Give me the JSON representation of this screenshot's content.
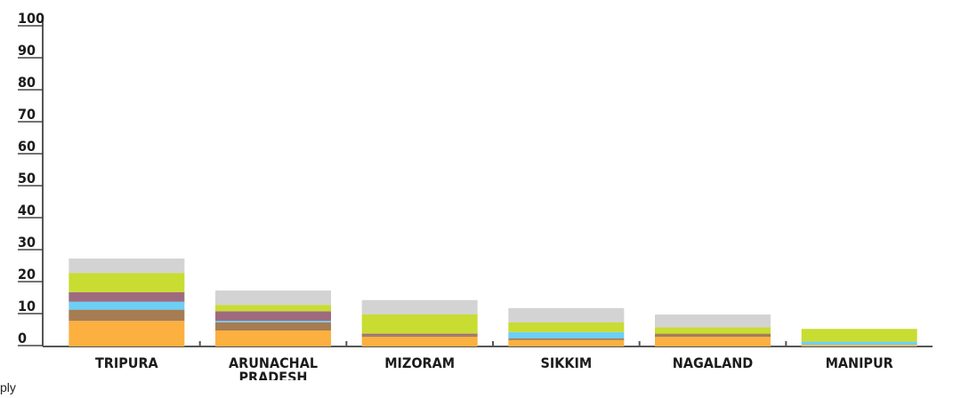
{
  "chart_data": {
    "type": "bar",
    "stacked": true,
    "title": "",
    "xlabel": "",
    "ylabel": "",
    "ylim": [
      0,
      100
    ],
    "yticks": [
      0,
      10,
      20,
      30,
      40,
      50,
      60,
      70,
      80,
      90,
      100
    ],
    "grid": false,
    "legend": "none",
    "categories": [
      "TRIPURA",
      "ARUNACHAL PRADESH",
      "MIZORAM",
      "SIKKIM",
      "NAGALAND",
      "MANIPUR"
    ],
    "series": [
      {
        "color": "#fbb040",
        "values": [
          8.0,
          5.0,
          3.0,
          2.0,
          3.0,
          0.5
        ]
      },
      {
        "color": "#a67c52",
        "values": [
          3.5,
          2.5,
          0.5,
          0.5,
          1.0,
          0.0
        ]
      },
      {
        "color": "#6ecff6",
        "values": [
          2.5,
          0.5,
          0.0,
          2.0,
          0.0,
          1.0
        ]
      },
      {
        "color": "#9e6b7e",
        "values": [
          3.0,
          3.0,
          0.5,
          0.0,
          0.0,
          0.0
        ]
      },
      {
        "color": "#c8dc32",
        "values": [
          6.0,
          2.0,
          6.0,
          3.0,
          2.0,
          4.0
        ]
      },
      {
        "color": "#d3d3d3",
        "values": [
          4.5,
          4.5,
          4.5,
          4.5,
          4.0,
          0.0
        ]
      }
    ]
  },
  "footnote": "ply"
}
